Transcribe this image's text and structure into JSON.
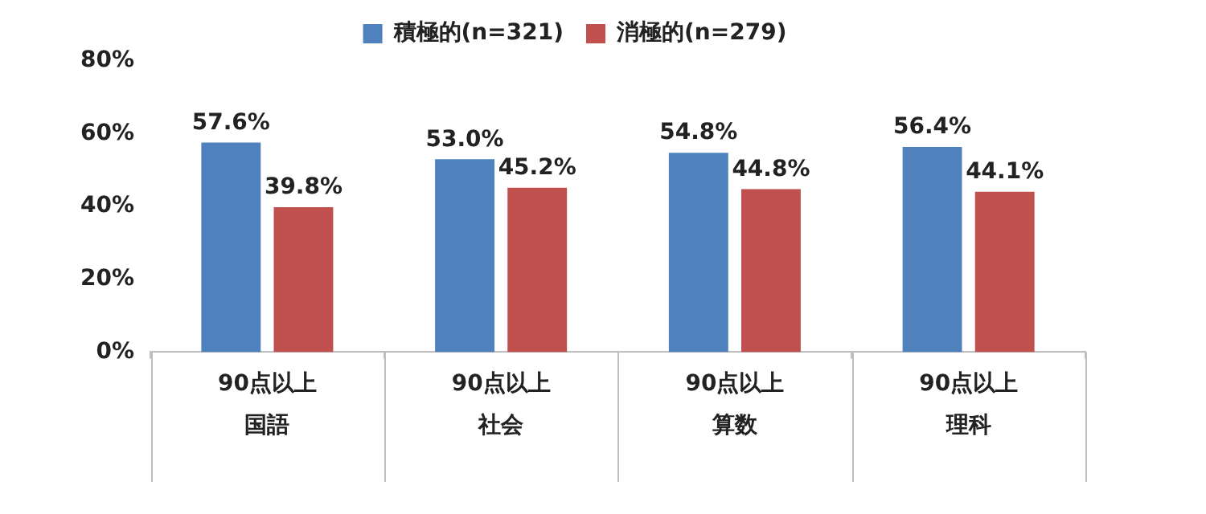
{
  "chart_data": {
    "type": "bar",
    "categories": [
      "国語",
      "社会",
      "算数",
      "理科"
    ],
    "series": [
      {
        "name": "積極的(n=321)",
        "color": "#4f81bd",
        "values": [
          57.6,
          53.0,
          54.8,
          56.4
        ],
        "value_labels": [
          "57.6%",
          "53.0%",
          "54.8%",
          "56.4%"
        ]
      },
      {
        "name": "消極的(n=279)",
        "color": "#c0504d",
        "values": [
          39.8,
          45.2,
          44.8,
          44.1
        ],
        "value_labels": [
          "39.8%",
          "45.2%",
          "44.8%",
          "44.1%"
        ]
      }
    ],
    "annotations": [
      "90点以上",
      "90点以上",
      "90点以上",
      "90点以上"
    ],
    "ylim": [
      0,
      80
    ],
    "yticks": [
      {
        "value": 0,
        "label": "0%"
      },
      {
        "value": 20,
        "label": "20%"
      },
      {
        "value": 40,
        "label": "40%"
      },
      {
        "value": 60,
        "label": "60%"
      },
      {
        "value": 80,
        "label": "80%"
      }
    ],
    "grid": false,
    "legend": "top"
  }
}
